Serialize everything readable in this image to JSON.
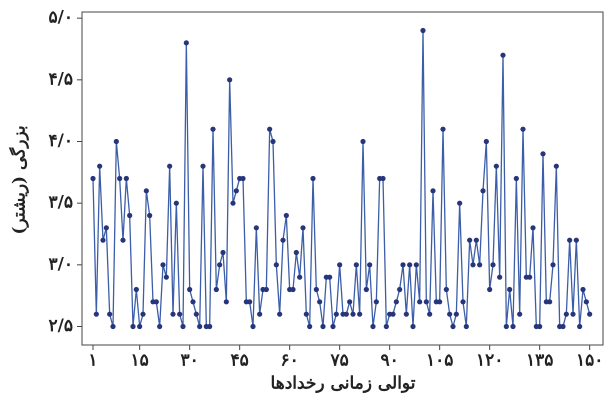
{
  "chart_data": {
    "type": "line",
    "xlabel": "توالی زمانی رخدادها",
    "ylabel": "بزرگی (ریشتر)",
    "x": [
      1,
      2,
      3,
      4,
      5,
      6,
      7,
      8,
      9,
      10,
      11,
      12,
      13,
      14,
      15,
      16,
      17,
      18,
      19,
      20,
      21,
      22,
      23,
      24,
      25,
      26,
      27,
      28,
      29,
      30,
      31,
      32,
      33,
      34,
      35,
      36,
      37,
      38,
      39,
      40,
      41,
      42,
      43,
      44,
      45,
      46,
      47,
      48,
      49,
      50,
      51,
      52,
      53,
      54,
      55,
      56,
      57,
      58,
      59,
      60,
      61,
      62,
      63,
      64,
      65,
      66,
      67,
      68,
      69,
      70,
      71,
      72,
      73,
      74,
      75,
      76,
      77,
      78,
      79,
      80,
      81,
      82,
      83,
      84,
      85,
      86,
      87,
      88,
      89,
      90,
      91,
      92,
      93,
      94,
      95,
      96,
      97,
      98,
      99,
      100,
      101,
      102,
      103,
      104,
      105,
      106,
      107,
      108,
      109,
      110,
      111,
      112,
      113,
      114,
      115,
      116,
      117,
      118,
      119,
      120,
      121,
      122,
      123,
      124,
      125,
      126,
      127,
      128,
      129,
      130,
      131,
      132,
      133,
      134,
      135,
      136,
      137,
      138,
      139,
      140,
      141,
      142,
      143,
      144,
      145,
      146,
      147,
      148,
      149,
      150
    ],
    "series": [
      {
        "color": "#3c5ea8",
        "marker_color": "#27357a",
        "values": [
          3.7,
          2.6,
          3.8,
          3.2,
          3.3,
          2.6,
          2.5,
          4.0,
          3.7,
          3.2,
          3.7,
          3.4,
          2.5,
          2.8,
          2.5,
          2.6,
          3.6,
          3.4,
          2.7,
          2.7,
          2.5,
          3.0,
          2.9,
          3.8,
          2.6,
          3.5,
          2.6,
          2.5,
          4.8,
          2.8,
          2.7,
          2.6,
          2.5,
          3.8,
          2.5,
          2.5,
          4.1,
          2.8,
          3.0,
          3.1,
          2.7,
          4.5,
          3.5,
          3.6,
          3.7,
          3.7,
          2.7,
          2.7,
          2.5,
          3.3,
          2.6,
          2.8,
          2.8,
          4.1,
          4.0,
          3.0,
          2.6,
          3.2,
          3.4,
          2.8,
          2.8,
          3.1,
          2.9,
          3.3,
          2.6,
          2.5,
          3.7,
          2.8,
          2.7,
          2.5,
          2.9,
          2.9,
          2.5,
          2.6,
          3.0,
          2.6,
          2.6,
          2.7,
          2.6,
          3.0,
          2.6,
          4.0,
          2.8,
          3.0,
          2.5,
          2.7,
          3.7,
          3.7,
          2.5,
          2.6,
          2.6,
          2.7,
          2.8,
          3.0,
          2.6,
          3.0,
          2.5,
          3.0,
          2.7,
          4.9,
          2.7,
          2.6,
          3.6,
          2.7,
          2.7,
          4.1,
          2.8,
          2.6,
          2.5,
          2.6,
          3.5,
          2.7,
          2.5,
          3.2,
          3.0,
          3.2,
          3.0,
          3.6,
          4.0,
          2.8,
          3.0,
          3.8,
          2.9,
          4.7,
          2.5,
          2.8,
          2.5,
          3.7,
          2.6,
          4.1,
          2.9,
          2.9,
          3.3,
          2.5,
          2.5,
          3.9,
          2.7,
          2.7,
          3.0,
          3.8,
          2.5,
          2.5,
          2.6,
          3.2,
          2.6,
          3.2,
          2.5,
          2.8,
          2.7,
          2.6
        ]
      }
    ],
    "xlim": [
      -2.3,
      154
    ],
    "ylim": [
      2.35,
      5.05
    ],
    "xticks": [
      {
        "value": 1,
        "label": "۱"
      },
      {
        "value": 15,
        "label": "۱۵"
      },
      {
        "value": 30,
        "label": "۳۰"
      },
      {
        "value": 45,
        "label": "۴۵"
      },
      {
        "value": 60,
        "label": "۶۰"
      },
      {
        "value": 75,
        "label": "۷۵"
      },
      {
        "value": 90,
        "label": "۹۰"
      },
      {
        "value": 105,
        "label": "۱۰۵"
      },
      {
        "value": 120,
        "label": "۱۲۰"
      },
      {
        "value": 135,
        "label": "۱۳۵"
      },
      {
        "value": 150,
        "label": "۱۵۰"
      }
    ],
    "yticks": [
      {
        "value": 2.5,
        "label": "۲/۵"
      },
      {
        "value": 3.0,
        "label": "۳/۰"
      },
      {
        "value": 3.5,
        "label": "۳/۵"
      },
      {
        "value": 4.0,
        "label": "۴/۰"
      },
      {
        "value": 4.5,
        "label": "۴/۵"
      },
      {
        "value": 5.0,
        "label": "۵/۰"
      }
    ],
    "grid": false
  }
}
